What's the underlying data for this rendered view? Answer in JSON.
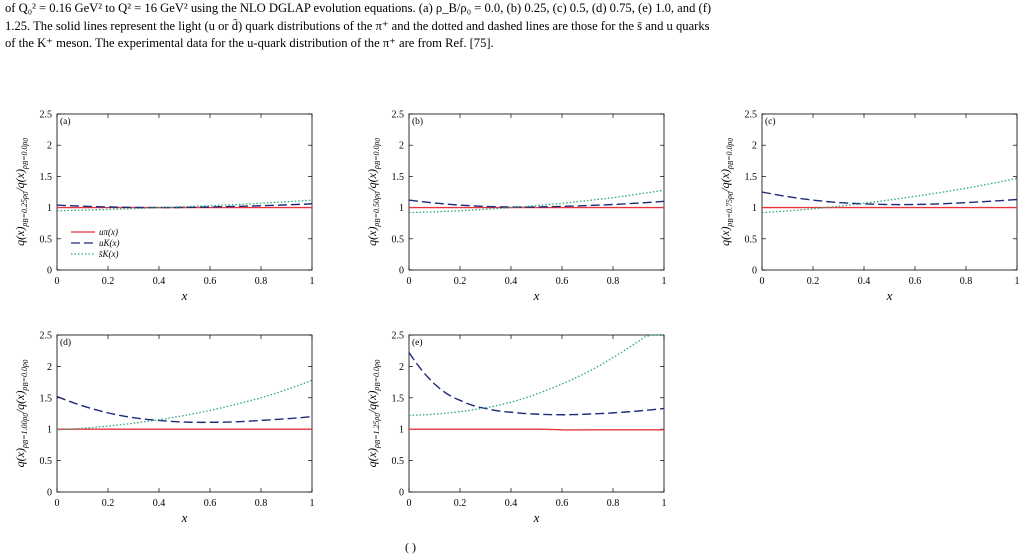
{
  "caption": {
    "line1": "of Q₀² = 0.16 GeV² to Q² = 16 GeV² using the NLO DGLAP evolution equations. (a) ρ_B/ρ₀ = 0.0, (b) 0.25, (c) 0.5, (d) 0.75, (e) 1.0, and (f)",
    "line2": "1.25. The solid lines represent the light (u or d̄) quark distributions of the π⁺ and the dotted and dashed lines are those for the s̄ and u quarks",
    "line3": "of the K⁺ meson. The experimental data for the u-quark distribution of the π⁺ are from Ref. [75]."
  },
  "bottom_fragment": "( )",
  "colors": {
    "u_pi": "#e8343c",
    "u_K": "#1f2a7a",
    "sbar_K": "#2aa87a"
  },
  "chart_data": [
    {
      "type": "line",
      "panel_label": "(a)",
      "xlabel": "x",
      "ylabel": "q(x)ρB=0.25ρ0/q(x)ρB=0.0ρ0",
      "xlim": [
        0,
        1
      ],
      "ylim": [
        0,
        2.5
      ],
      "xticks": [
        "0",
        "0.2",
        "0.4",
        "0.6",
        "0.8",
        "1"
      ],
      "yticks": [
        "0",
        "0.5",
        "1",
        "1.5",
        "2",
        "2.5"
      ],
      "legend": [
        "uπ(x)",
        "uK(x)",
        "s̄K(x)"
      ],
      "legend_position": "bottom-left",
      "x": [
        0,
        0.2,
        0.4,
        0.6,
        0.8,
        1.0
      ],
      "series": [
        {
          "name": "uπ(x)",
          "style": "solid",
          "values": [
            1.0,
            1.0,
            1.0,
            1.0,
            1.0,
            1.0
          ]
        },
        {
          "name": "uK(x)",
          "style": "dashed",
          "values": [
            1.04,
            1.01,
            1.0,
            1.01,
            1.03,
            1.06
          ]
        },
        {
          "name": "s̄K(x)",
          "style": "dotted",
          "values": [
            0.95,
            0.97,
            1.0,
            1.03,
            1.07,
            1.12
          ]
        }
      ]
    },
    {
      "type": "line",
      "panel_label": "(b)",
      "xlabel": "x",
      "ylabel": "q(x)ρB=0.50ρ0/q(x)ρB=0.0ρ0",
      "xlim": [
        0,
        1
      ],
      "ylim": [
        0,
        2.5
      ],
      "xticks": [
        "0",
        "0.2",
        "0.4",
        "0.6",
        "0.8",
        "1"
      ],
      "yticks": [
        "0",
        "0.5",
        "1",
        "1.5",
        "2",
        "2.5"
      ],
      "x": [
        0,
        0.2,
        0.4,
        0.6,
        0.8,
        1.0
      ],
      "series": [
        {
          "name": "uπ(x)",
          "style": "solid",
          "values": [
            1.0,
            1.0,
            1.0,
            1.0,
            1.0,
            1.0
          ]
        },
        {
          "name": "uK(x)",
          "style": "dashed",
          "values": [
            1.12,
            1.04,
            1.01,
            1.02,
            1.05,
            1.1
          ]
        },
        {
          "name": "s̄K(x)",
          "style": "dotted",
          "values": [
            0.92,
            0.95,
            1.0,
            1.07,
            1.16,
            1.28
          ]
        }
      ]
    },
    {
      "type": "line",
      "panel_label": "(c)",
      "xlabel": "x",
      "ylabel": "q(x)ρB=0.75ρ0/q(x)ρB=0.0ρ0",
      "xlim": [
        0,
        1
      ],
      "ylim": [
        0,
        2.5
      ],
      "xticks": [
        "0",
        "0.2",
        "0.4",
        "0.6",
        "0.8",
        "1"
      ],
      "yticks": [
        "0",
        "0.5",
        "1",
        "1.5",
        "2",
        "2.5"
      ],
      "x": [
        0,
        0.2,
        0.4,
        0.6,
        0.8,
        1.0
      ],
      "series": [
        {
          "name": "uπ(x)",
          "style": "solid",
          "values": [
            1.0,
            1.0,
            1.0,
            1.0,
            1.0,
            1.0
          ]
        },
        {
          "name": "uK(x)",
          "style": "dashed",
          "values": [
            1.25,
            1.12,
            1.06,
            1.05,
            1.08,
            1.13
          ]
        },
        {
          "name": "s̄K(x)",
          "style": "dotted",
          "values": [
            0.92,
            0.98,
            1.07,
            1.18,
            1.31,
            1.47
          ]
        }
      ]
    },
    {
      "type": "line",
      "panel_label": "(d)",
      "xlabel": "x",
      "ylabel": "q(x)ρB=1.00ρ0/q(x)ρB=0.0ρ0",
      "xlim": [
        0,
        1
      ],
      "ylim": [
        0,
        2.5
      ],
      "xticks": [
        "0",
        "0.2",
        "0.4",
        "0.6",
        "0.8",
        "1"
      ],
      "yticks": [
        "0",
        "0.5",
        "1",
        "1.5",
        "2",
        "2.5"
      ],
      "x": [
        0,
        0.2,
        0.4,
        0.6,
        0.8,
        1.0
      ],
      "series": [
        {
          "name": "uπ(x)",
          "style": "solid",
          "values": [
            1.0,
            1.0,
            1.0,
            1.0,
            1.0,
            1.0
          ]
        },
        {
          "name": "uK(x)",
          "style": "dashed",
          "values": [
            1.52,
            1.26,
            1.14,
            1.11,
            1.14,
            1.2
          ]
        },
        {
          "name": "s̄K(x)",
          "style": "dotted",
          "values": [
            0.99,
            1.05,
            1.15,
            1.3,
            1.5,
            1.78
          ]
        }
      ]
    },
    {
      "type": "line",
      "panel_label": "(e)",
      "xlabel": "x",
      "ylabel": "q(x)ρB=1.25ρ0/q(x)ρB=0.0ρ0",
      "xlim": [
        0,
        1
      ],
      "ylim": [
        0,
        2.5
      ],
      "xticks": [
        "0",
        "0.2",
        "0.4",
        "0.6",
        "0.8",
        "1"
      ],
      "yticks": [
        "0",
        "0.5",
        "1",
        "1.5",
        "2",
        "2.5"
      ],
      "x": [
        0,
        0.1,
        0.2,
        0.3,
        0.4,
        0.5,
        0.6,
        0.7,
        0.8,
        0.9,
        1.0
      ],
      "series": [
        {
          "name": "uπ(x)",
          "style": "solid",
          "values": [
            1.0,
            1.0,
            1.0,
            1.0,
            1.0,
            1.0,
            0.99,
            0.99,
            0.99,
            0.99,
            0.99
          ]
        },
        {
          "name": "uK(x)",
          "style": "dashed",
          "values": [
            2.22,
            1.72,
            1.46,
            1.33,
            1.27,
            1.24,
            1.23,
            1.24,
            1.26,
            1.29,
            1.33
          ]
        },
        {
          "name": "s̄K(x)",
          "style": "dotted",
          "values": [
            1.22,
            1.24,
            1.28,
            1.34,
            1.43,
            1.56,
            1.72,
            1.91,
            2.14,
            2.4,
            2.68
          ]
        }
      ]
    }
  ]
}
